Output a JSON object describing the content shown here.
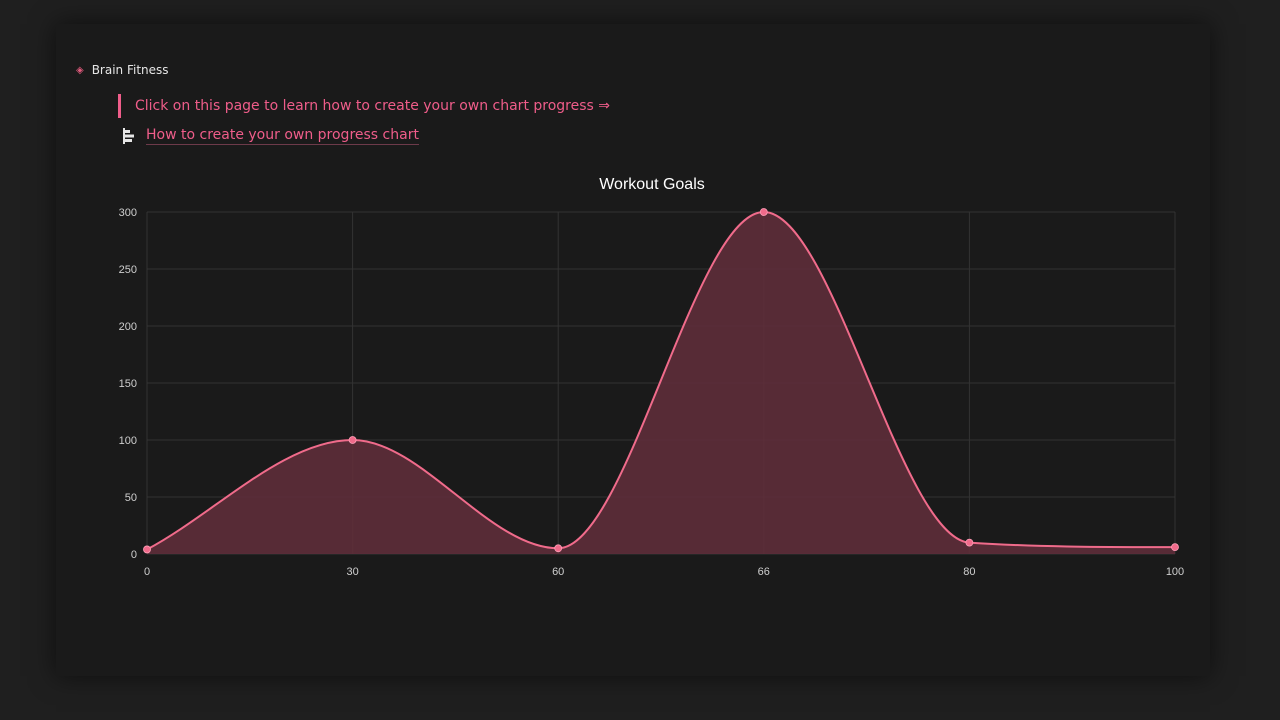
{
  "breadcrumb": {
    "icon": "brain-icon",
    "label": "Brain Fitness"
  },
  "callout": {
    "text": "Click on this page to learn how to create your own chart progress ⇒"
  },
  "page_link": {
    "icon": "chart-page-icon",
    "label": "How to create your own progress chart"
  },
  "colors": {
    "accent": "#ef5d8a",
    "line": "#f06b8b",
    "fill": "#5e2d3a",
    "grid": "#333333",
    "text": "#cfcfcf",
    "title": "#ffffff"
  },
  "chart_data": {
    "type": "area",
    "title": "Workout Goals",
    "xlabel": "",
    "ylabel": "",
    "categories": [
      "0",
      "30",
      "60",
      "66",
      "80",
      "100"
    ],
    "values": [
      4,
      100,
      5,
      300,
      10,
      6
    ],
    "ylim": [
      0,
      300
    ],
    "yticks": [
      0,
      50,
      100,
      150,
      200,
      250,
      300
    ],
    "grid": true,
    "legend": "none",
    "smooth": true
  }
}
